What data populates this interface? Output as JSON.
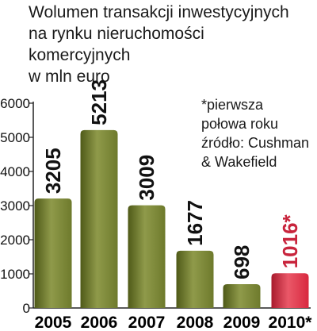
{
  "chart_data": {
    "type": "bar",
    "title_lines": [
      "Wolumen transakcji inwestycyjnych",
      "na rynku nieruchomości",
      "komercyjnych",
      "w mln euro"
    ],
    "note_lines": [
      "*pierwsza",
      "połowa roku",
      "źródło: Cushman",
      "& Wakefield"
    ],
    "categories": [
      "2005",
      "2006",
      "2007",
      "2008",
      "2009",
      "2010*"
    ],
    "values": [
      3205,
      5213,
      3009,
      1677,
      698,
      1016
    ],
    "value_labels": [
      "3205",
      "5213",
      "3009",
      "1677",
      "698",
      "1016*"
    ],
    "yticks": [
      "0",
      "1000",
      "2000",
      "3000",
      "4000",
      "5000",
      "6000"
    ],
    "ylim": [
      0,
      6000
    ],
    "grid": false,
    "colors": {
      "bar": "#6e7a2c",
      "bar_dark": "#4f5a18",
      "bar_light": "#8f9a4a",
      "highlight": "#d8283f",
      "highlight_dark": "#a81a2d",
      "highlight_light": "#ea5868"
    },
    "highlight_index": 5
  }
}
